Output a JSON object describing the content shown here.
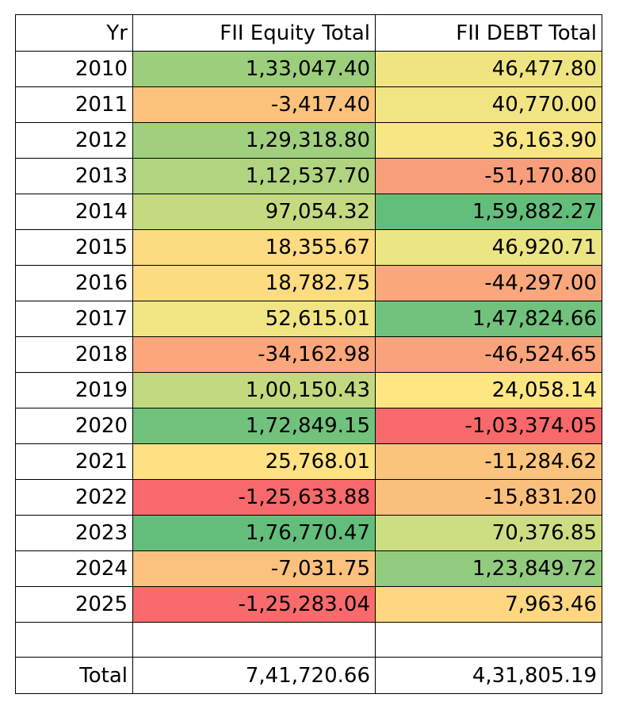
{
  "table": {
    "headers": {
      "year": "Yr",
      "equity": "FII Equity Total",
      "debt": "FII DEBT Total"
    },
    "rows": [
      {
        "year": "2010",
        "equity": "1,33,047.40",
        "equity_color": "#9cce7c",
        "debt": "46,477.80",
        "debt_color": "#eee582"
      },
      {
        "year": "2011",
        "equity": "-3,417.40",
        "equity_color": "#fcc27c",
        "debt": "40,770.00",
        "debt_color": "#f1e482"
      },
      {
        "year": "2012",
        "equity": "1,29,318.80",
        "equity_color": "#a0cf7d",
        "debt": "36,163.90",
        "debt_color": "#f8e683"
      },
      {
        "year": "2013",
        "equity": "1,12,537.70",
        "equity_color": "#b0d47f",
        "debt": "-51,170.80",
        "debt_color": "#f89e7a"
      },
      {
        "year": "2014",
        "equity": "97,054.32",
        "equity_color": "#c5da80",
        "debt": "1,59,882.27",
        "debt_color": "#63be7b"
      },
      {
        "year": "2015",
        "equity": "18,355.67",
        "equity_color": "#fddb80",
        "debt": "46,920.71",
        "debt_color": "#ece583"
      },
      {
        "year": "2016",
        "equity": "18,782.75",
        "equity_color": "#fddb80",
        "debt": "-44,297.00",
        "debt_color": "#f9a77b"
      },
      {
        "year": "2017",
        "equity": "52,615.01",
        "equity_color": "#f1e482",
        "debt": "1,47,824.66",
        "debt_color": "#71c27c"
      },
      {
        "year": "2018",
        "equity": "-34,162.98",
        "equity_color": "#fba77b",
        "debt": "-46,524.65",
        "debt_color": "#f8a37b"
      },
      {
        "year": "2019",
        "equity": "1,00,150.43",
        "equity_color": "#c2d980",
        "debt": "24,058.14",
        "debt_color": "#fee783"
      },
      {
        "year": "2020",
        "equity": "1,72,849.15",
        "equity_color": "#70c27c",
        "debt": "-1,03,374.05",
        "debt_color": "#f8696b"
      },
      {
        "year": "2021",
        "equity": "25,768.01",
        "equity_color": "#fde182",
        "debt": "-11,284.62",
        "debt_color": "#fbc47c"
      },
      {
        "year": "2022",
        "equity": "-1,25,633.88",
        "equity_color": "#f8696b",
        "debt": "-15,831.20",
        "debt_color": "#fbbf7c"
      },
      {
        "year": "2023",
        "equity": "1,76,770.47",
        "equity_color": "#63be7b",
        "debt": "70,376.85",
        "debt_color": "#cddd82"
      },
      {
        "year": "2024",
        "equity": "-7,031.75",
        "equity_color": "#fcc17c",
        "debt": "1,23,849.72",
        "debt_color": "#92cb7d"
      },
      {
        "year": "2025",
        "equity": "-1,25,283.04",
        "equity_color": "#f86a6c",
        "debt": "7,963.46",
        "debt_color": "#fed780"
      }
    ],
    "blank_row": {
      "year": "",
      "equity": "",
      "debt": ""
    },
    "total": {
      "label": "Total",
      "equity": "7,41,720.66",
      "debt": "4,31,805.19"
    }
  }
}
